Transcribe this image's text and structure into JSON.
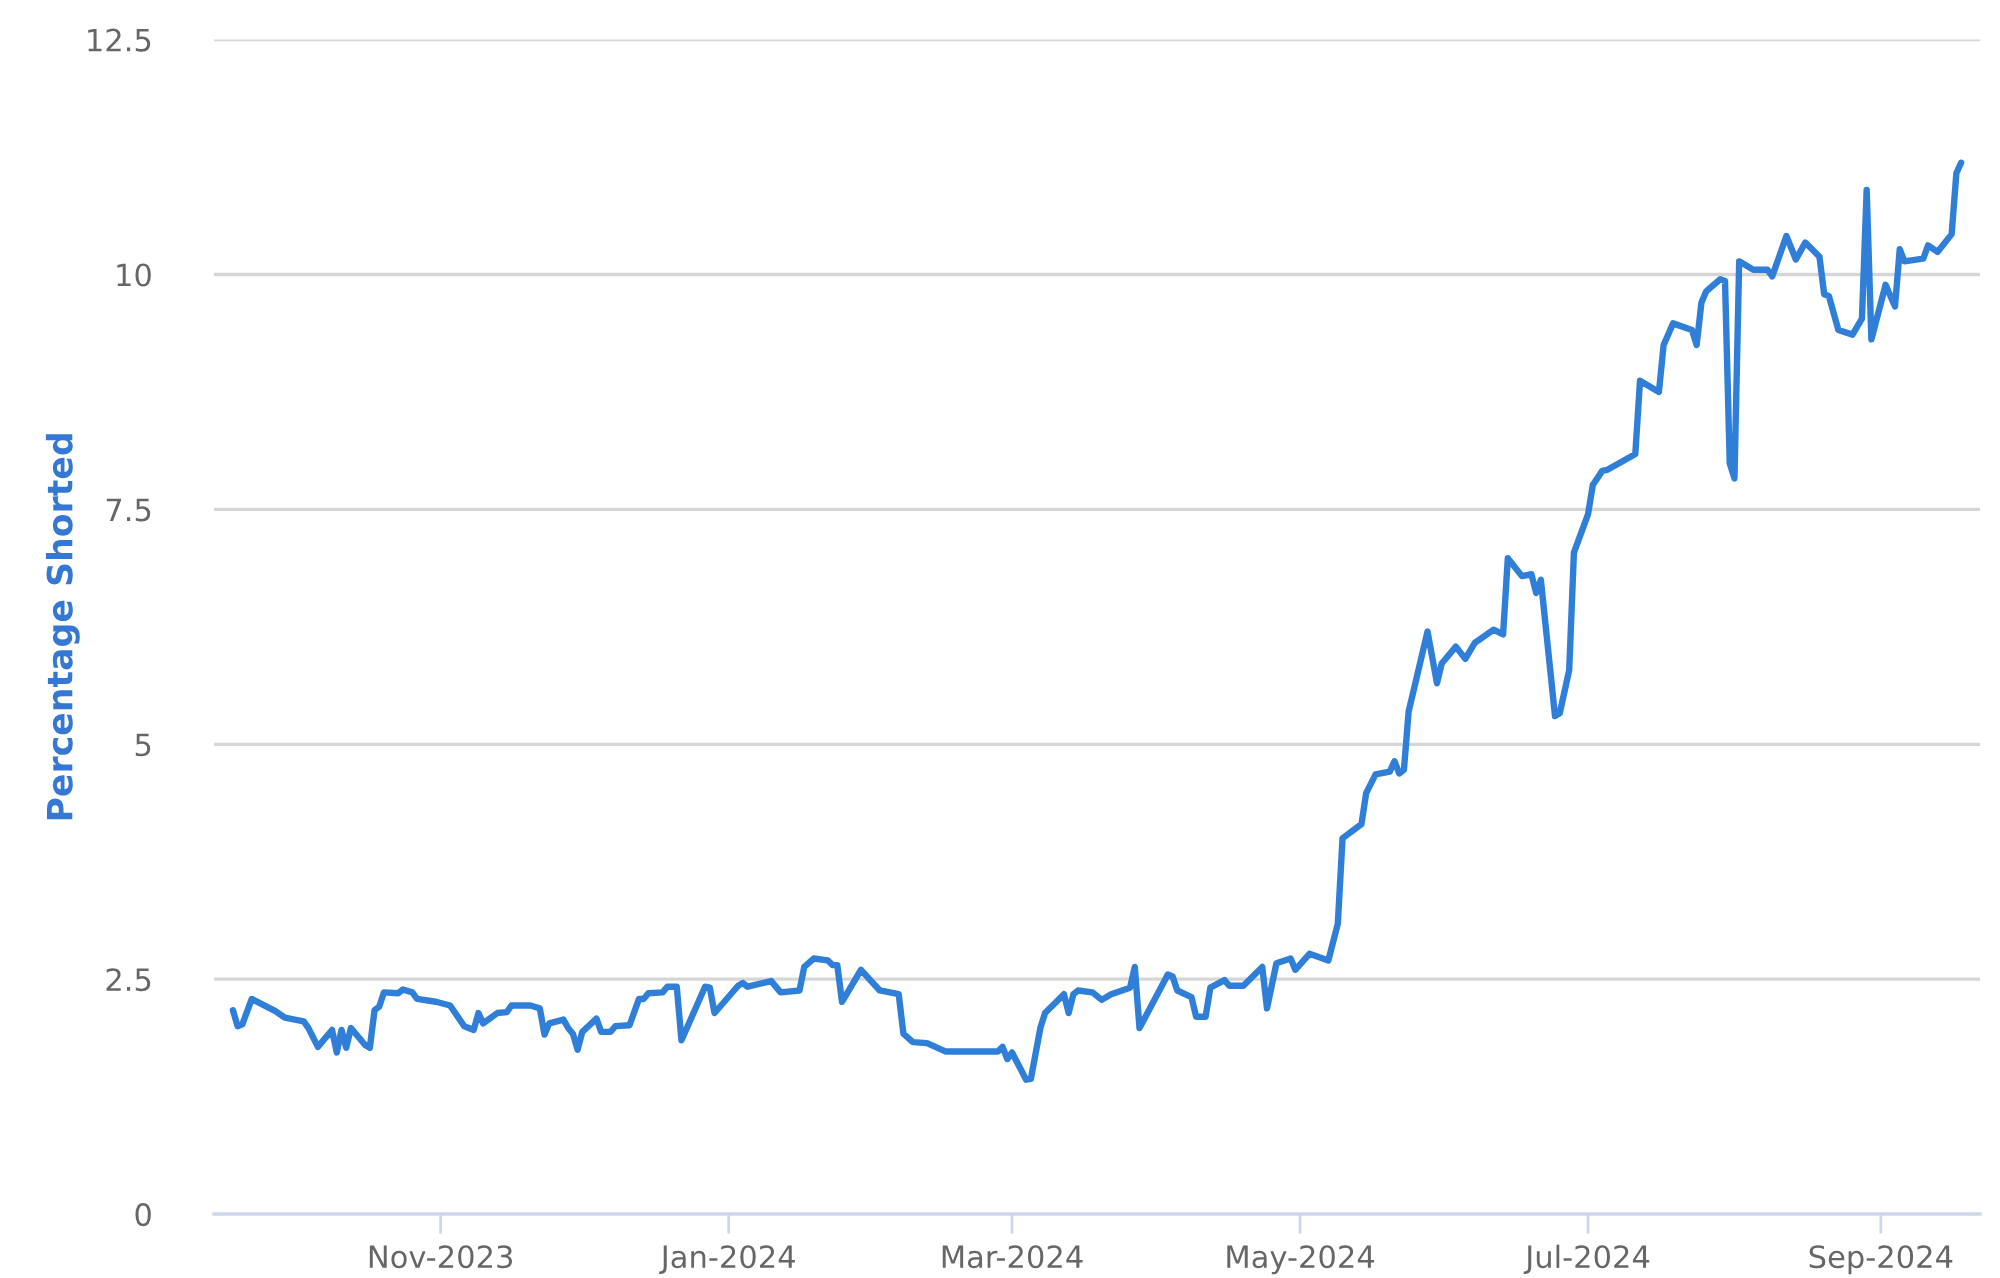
{
  "chart_data": {
    "type": "line",
    "ylabel": "Percentage Shorted",
    "x": [
      "2023-09-18",
      "2023-09-19",
      "2023-09-20",
      "2023-09-22",
      "2023-09-27",
      "2023-09-29",
      "2023-10-03",
      "2023-10-04",
      "2023-10-06",
      "2023-10-09",
      "2023-10-10",
      "2023-10-11",
      "2023-10-12",
      "2023-10-13",
      "2023-10-16",
      "2023-10-17",
      "2023-10-18",
      "2023-10-19",
      "2023-10-20",
      "2023-10-23",
      "2023-10-24",
      "2023-10-26",
      "2023-10-27",
      "2023-10-31",
      "2023-11-03",
      "2023-11-06",
      "2023-11-08",
      "2023-11-09",
      "2023-11-10",
      "2023-11-13",
      "2023-11-15",
      "2023-11-16",
      "2023-11-20",
      "2023-11-22",
      "2023-11-23",
      "2023-11-24",
      "2023-11-27",
      "2023-11-28",
      "2023-11-29",
      "2023-11-30",
      "2023-12-01",
      "2023-12-04",
      "2023-12-05",
      "2023-12-07",
      "2023-12-08",
      "2023-12-11",
      "2023-12-13",
      "2023-12-14",
      "2023-12-15",
      "2023-12-18",
      "2023-12-19",
      "2023-12-21",
      "2023-12-22",
      "2023-12-27",
      "2023-12-28",
      "2023-12-29",
      "2024-01-03",
      "2024-01-04",
      "2024-01-05",
      "2024-01-10",
      "2024-01-12",
      "2024-01-16",
      "2024-01-17",
      "2024-01-19",
      "2024-01-22",
      "2024-01-23",
      "2024-01-24",
      "2024-01-25",
      "2024-01-29",
      "2024-02-02",
      "2024-02-06",
      "2024-02-07",
      "2024-02-09",
      "2024-02-12",
      "2024-02-16",
      "2024-02-27",
      "2024-02-28",
      "2024-02-29",
      "2024-03-01",
      "2024-03-04",
      "2024-03-05",
      "2024-03-07",
      "2024-03-08",
      "2024-03-12",
      "2024-03-13",
      "2024-03-14",
      "2024-03-15",
      "2024-03-18",
      "2024-03-20",
      "2024-03-22",
      "2024-03-26",
      "2024-03-27",
      "2024-03-28",
      "2024-04-03",
      "2024-04-04",
      "2024-04-05",
      "2024-04-08",
      "2024-04-09",
      "2024-04-11",
      "2024-04-12",
      "2024-04-15",
      "2024-04-16",
      "2024-04-19",
      "2024-04-23",
      "2024-04-24",
      "2024-04-26",
      "2024-04-29",
      "2024-04-30",
      "2024-05-03",
      "2024-05-07",
      "2024-05-09",
      "2024-05-10",
      "2024-05-14",
      "2024-05-15",
      "2024-05-17",
      "2024-05-20",
      "2024-05-21",
      "2024-05-22",
      "2024-05-23",
      "2024-05-24",
      "2024-05-28",
      "2024-05-30",
      "2024-05-31",
      "2024-06-03",
      "2024-06-05",
      "2024-06-07",
      "2024-06-11",
      "2024-06-13",
      "2024-06-14",
      "2024-06-17",
      "2024-06-19",
      "2024-06-20",
      "2024-06-21",
      "2024-06-24",
      "2024-06-25",
      "2024-06-27",
      "2024-06-28",
      "2024-07-01",
      "2024-07-02",
      "2024-07-04",
      "2024-07-05",
      "2024-07-10",
      "2024-07-11",
      "2024-07-12",
      "2024-07-16",
      "2024-07-17",
      "2024-07-19",
      "2024-07-23",
      "2024-07-24",
      "2024-07-25",
      "2024-07-26",
      "2024-07-29",
      "2024-07-30",
      "2024-07-31",
      "2024-08-01",
      "2024-08-02",
      "2024-08-05",
      "2024-08-08",
      "2024-08-09",
      "2024-08-12",
      "2024-08-14",
      "2024-08-16",
      "2024-08-19",
      "2024-08-20",
      "2024-08-21",
      "2024-08-23",
      "2024-08-26",
      "2024-08-28",
      "2024-08-29",
      "2024-08-30",
      "2024-09-02",
      "2024-09-04",
      "2024-09-05",
      "2024-09-06",
      "2024-09-10",
      "2024-09-11",
      "2024-09-13",
      "2024-09-16",
      "2024-09-17",
      "2024-09-18"
    ],
    "series": [
      {
        "color": "#2f7fd8",
        "values": [
          2.17,
          2.0,
          2.02,
          2.29,
          2.16,
          2.09,
          2.05,
          1.98,
          1.78,
          1.96,
          1.72,
          1.96,
          1.77,
          1.98,
          1.8,
          1.77,
          2.17,
          2.21,
          2.36,
          2.35,
          2.39,
          2.36,
          2.29,
          2.26,
          2.22,
          2.0,
          1.96,
          2.14,
          2.03,
          2.14,
          2.15,
          2.22,
          2.22,
          2.19,
          1.91,
          2.03,
          2.07,
          1.98,
          1.92,
          1.75,
          1.94,
          2.08,
          1.94,
          1.94,
          2.0,
          2.01,
          2.29,
          2.29,
          2.35,
          2.36,
          2.42,
          2.42,
          1.85,
          2.42,
          2.41,
          2.14,
          2.43,
          2.46,
          2.42,
          2.48,
          2.36,
          2.38,
          2.63,
          2.72,
          2.7,
          2.65,
          2.65,
          2.26,
          2.6,
          2.38,
          2.34,
          1.92,
          1.83,
          1.82,
          1.73,
          1.73,
          1.78,
          1.65,
          1.72,
          1.43,
          1.44,
          1.98,
          2.14,
          2.34,
          2.14,
          2.34,
          2.38,
          2.36,
          2.28,
          2.34,
          2.41,
          2.63,
          1.98,
          2.55,
          2.53,
          2.38,
          2.31,
          2.1,
          2.1,
          2.41,
          2.49,
          2.43,
          2.43,
          2.63,
          2.19,
          2.67,
          2.72,
          2.6,
          2.77,
          2.7,
          3.09,
          4.0,
          4.15,
          4.48,
          4.68,
          4.71,
          4.82,
          4.69,
          4.73,
          5.35,
          6.2,
          5.65,
          5.86,
          6.04,
          5.91,
          6.08,
          6.22,
          6.17,
          6.98,
          6.79,
          6.81,
          6.61,
          6.75,
          5.3,
          5.33,
          5.79,
          7.04,
          7.45,
          7.76,
          7.91,
          7.92,
          8.06,
          8.09,
          8.87,
          8.75,
          9.25,
          9.48,
          9.41,
          9.25,
          9.7,
          9.82,
          9.95,
          9.93,
          7.99,
          7.83,
          10.14,
          10.05,
          10.05,
          9.98,
          10.41,
          10.16,
          10.34,
          10.19,
          9.79,
          9.77,
          9.41,
          9.36,
          9.53,
          10.9,
          9.31,
          9.89,
          9.66,
          10.27,
          10.14,
          10.17,
          10.31,
          10.24,
          10.43,
          11.08,
          11.19
        ]
      }
    ],
    "xlim": [
      "2023-09-14",
      "2024-09-22"
    ],
    "xticks": [
      {
        "value": "2023-11-01",
        "label": "Nov-2023"
      },
      {
        "value": "2024-01-01",
        "label": "Jan-2024"
      },
      {
        "value": "2024-03-01",
        "label": "Mar-2024"
      },
      {
        "value": "2024-05-01",
        "label": "May-2024"
      },
      {
        "value": "2024-07-01",
        "label": "Jul-2024"
      },
      {
        "value": "2024-09-01",
        "label": "Sep-2024"
      }
    ],
    "ylim": [
      0,
      12.5
    ],
    "yticks": [
      0,
      2.5,
      5,
      7.5,
      10,
      12.5
    ],
    "grid": "y"
  }
}
